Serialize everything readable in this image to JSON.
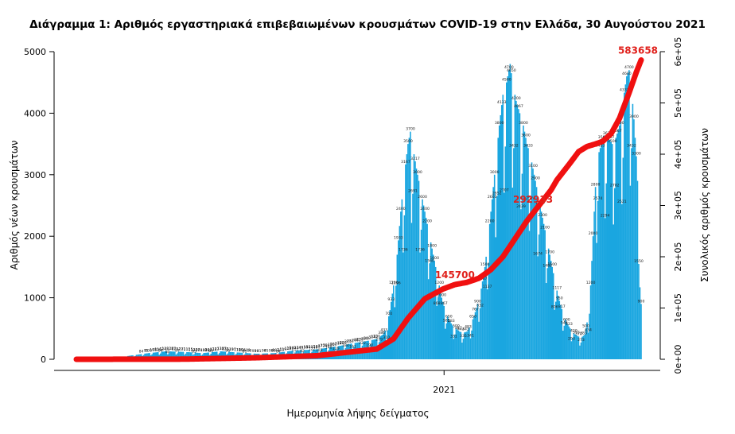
{
  "chart_data": {
    "type": "bar+line",
    "title": "Διάγραμμα 1: Αριθμός εργαστηριακά επιβεβαιωμένων κρουσμάτων COVID-19 στην Ελλάδα, 30 Αυγούστου 2021",
    "xlabel": "Ημερομηνία λήψης δείγματος",
    "ylabel": "Αριθμός νέων κρουσμάτων",
    "ylabel_right": "Συνολικός αριθμός κρουσμάτων",
    "x_ticks": [
      {
        "label": "2021",
        "day": 306
      }
    ],
    "ylim": [
      0,
      5000
    ],
    "yticks": [
      0,
      1000,
      2000,
      3000,
      4000,
      5000
    ],
    "ylim_right": [
      0,
      600000
    ],
    "yticks_right": [
      "0e+00",
      "1e+05",
      "2e+05",
      "3e+05",
      "4e+05",
      "5e+05",
      "6e+05"
    ],
    "yticks_right_values": [
      0,
      100000,
      200000,
      300000,
      400000,
      500000,
      600000
    ],
    "colors": {
      "bars": "#1aa6e0",
      "cumulative": "#f01010",
      "annotation": "#e0201b"
    },
    "daily_anchors": [
      [
        0,
        2
      ],
      [
        15,
        8
      ],
      [
        30,
        15
      ],
      [
        45,
        60
      ],
      [
        60,
        100
      ],
      [
        75,
        130
      ],
      [
        90,
        120
      ],
      [
        105,
        100
      ],
      [
        120,
        130
      ],
      [
        135,
        110
      ],
      [
        150,
        90
      ],
      [
        165,
        100
      ],
      [
        180,
        140
      ],
      [
        190,
        150
      ],
      [
        200,
        160
      ],
      [
        210,
        190
      ],
      [
        220,
        220
      ],
      [
        230,
        260
      ],
      [
        240,
        290
      ],
      [
        250,
        330
      ],
      [
        255,
        400
      ],
      [
        258,
        500
      ],
      [
        261,
        800
      ],
      [
        264,
        1200
      ],
      [
        267,
        1700
      ],
      [
        270,
        2400
      ],
      [
        273,
        3000
      ],
      [
        276,
        3500
      ],
      [
        278,
        3700
      ],
      [
        280,
        3450
      ],
      [
        283,
        3100
      ],
      [
        286,
        2800
      ],
      [
        289,
        2500
      ],
      [
        292,
        2200
      ],
      [
        295,
        1900
      ],
      [
        298,
        1600
      ],
      [
        301,
        1300
      ],
      [
        304,
        1000
      ],
      [
        307,
        800
      ],
      [
        310,
        650
      ],
      [
        313,
        550
      ],
      [
        316,
        500
      ],
      [
        319,
        450
      ],
      [
        322,
        430
      ],
      [
        325,
        450
      ],
      [
        328,
        550
      ],
      [
        331,
        700
      ],
      [
        334,
        900
      ],
      [
        337,
        1150
      ],
      [
        340,
        1500
      ],
      [
        343,
        2000
      ],
      [
        346,
        2600
      ],
      [
        349,
        3200
      ],
      [
        352,
        3800
      ],
      [
        355,
        4300
      ],
      [
        358,
        4500
      ],
      [
        361,
        4800
      ],
      [
        363,
        4500
      ],
      [
        366,
        4200
      ],
      [
        369,
        4000
      ],
      [
        372,
        3800
      ],
      [
        375,
        3500
      ],
      [
        378,
        3300
      ],
      [
        381,
        3000
      ],
      [
        384,
        2700
      ],
      [
        387,
        2400
      ],
      [
        390,
        2100
      ],
      [
        393,
        1800
      ],
      [
        396,
        1500
      ],
      [
        399,
        1200
      ],
      [
        402,
        950
      ],
      [
        405,
        750
      ],
      [
        408,
        600
      ],
      [
        411,
        500
      ],
      [
        414,
        420
      ],
      [
        417,
        380
      ],
      [
        420,
        350
      ],
      [
        423,
        400
      ],
      [
        426,
        700
      ],
      [
        428,
        1200
      ],
      [
        430,
        2000
      ],
      [
        432,
        2800
      ],
      [
        434,
        3300
      ],
      [
        437,
        3500
      ],
      [
        440,
        3700
      ],
      [
        443,
        3600
      ],
      [
        446,
        3500
      ],
      [
        449,
        3600
      ],
      [
        452,
        3800
      ],
      [
        455,
        4200
      ],
      [
        458,
        4600
      ],
      [
        460,
        4700
      ],
      [
        462,
        4400
      ],
      [
        464,
        3900
      ],
      [
        466,
        3300
      ],
      [
        468,
        2500
      ],
      [
        469,
        1500
      ],
      [
        470,
        900
      ]
    ],
    "cumulative_anchors": [
      [
        0,
        0
      ],
      [
        90,
        300
      ],
      [
        150,
        3000
      ],
      [
        200,
        7000
      ],
      [
        250,
        20000
      ],
      [
        264,
        40000
      ],
      [
        276,
        80000
      ],
      [
        290,
        118000
      ],
      [
        305,
        137000
      ],
      [
        315,
        145700
      ],
      [
        325,
        150000
      ],
      [
        335,
        158000
      ],
      [
        345,
        175000
      ],
      [
        355,
        200000
      ],
      [
        365,
        235000
      ],
      [
        375,
        270000
      ],
      [
        385,
        300000
      ],
      [
        395,
        330000
      ],
      [
        400,
        350000
      ],
      [
        410,
        380000
      ],
      [
        418,
        405000
      ],
      [
        425,
        415000
      ],
      [
        432,
        420000
      ],
      [
        438,
        425000
      ],
      [
        445,
        440000
      ],
      [
        452,
        470000
      ],
      [
        460,
        520000
      ],
      [
        466,
        560000
      ],
      [
        470,
        583658
      ]
    ],
    "annotations": [
      {
        "text": "145700",
        "day": 315,
        "value": 145700
      },
      {
        "text": "292933",
        "day": 380,
        "value": 292933
      },
      {
        "text": "583658",
        "day": 470,
        "value": 583658
      }
    ]
  }
}
